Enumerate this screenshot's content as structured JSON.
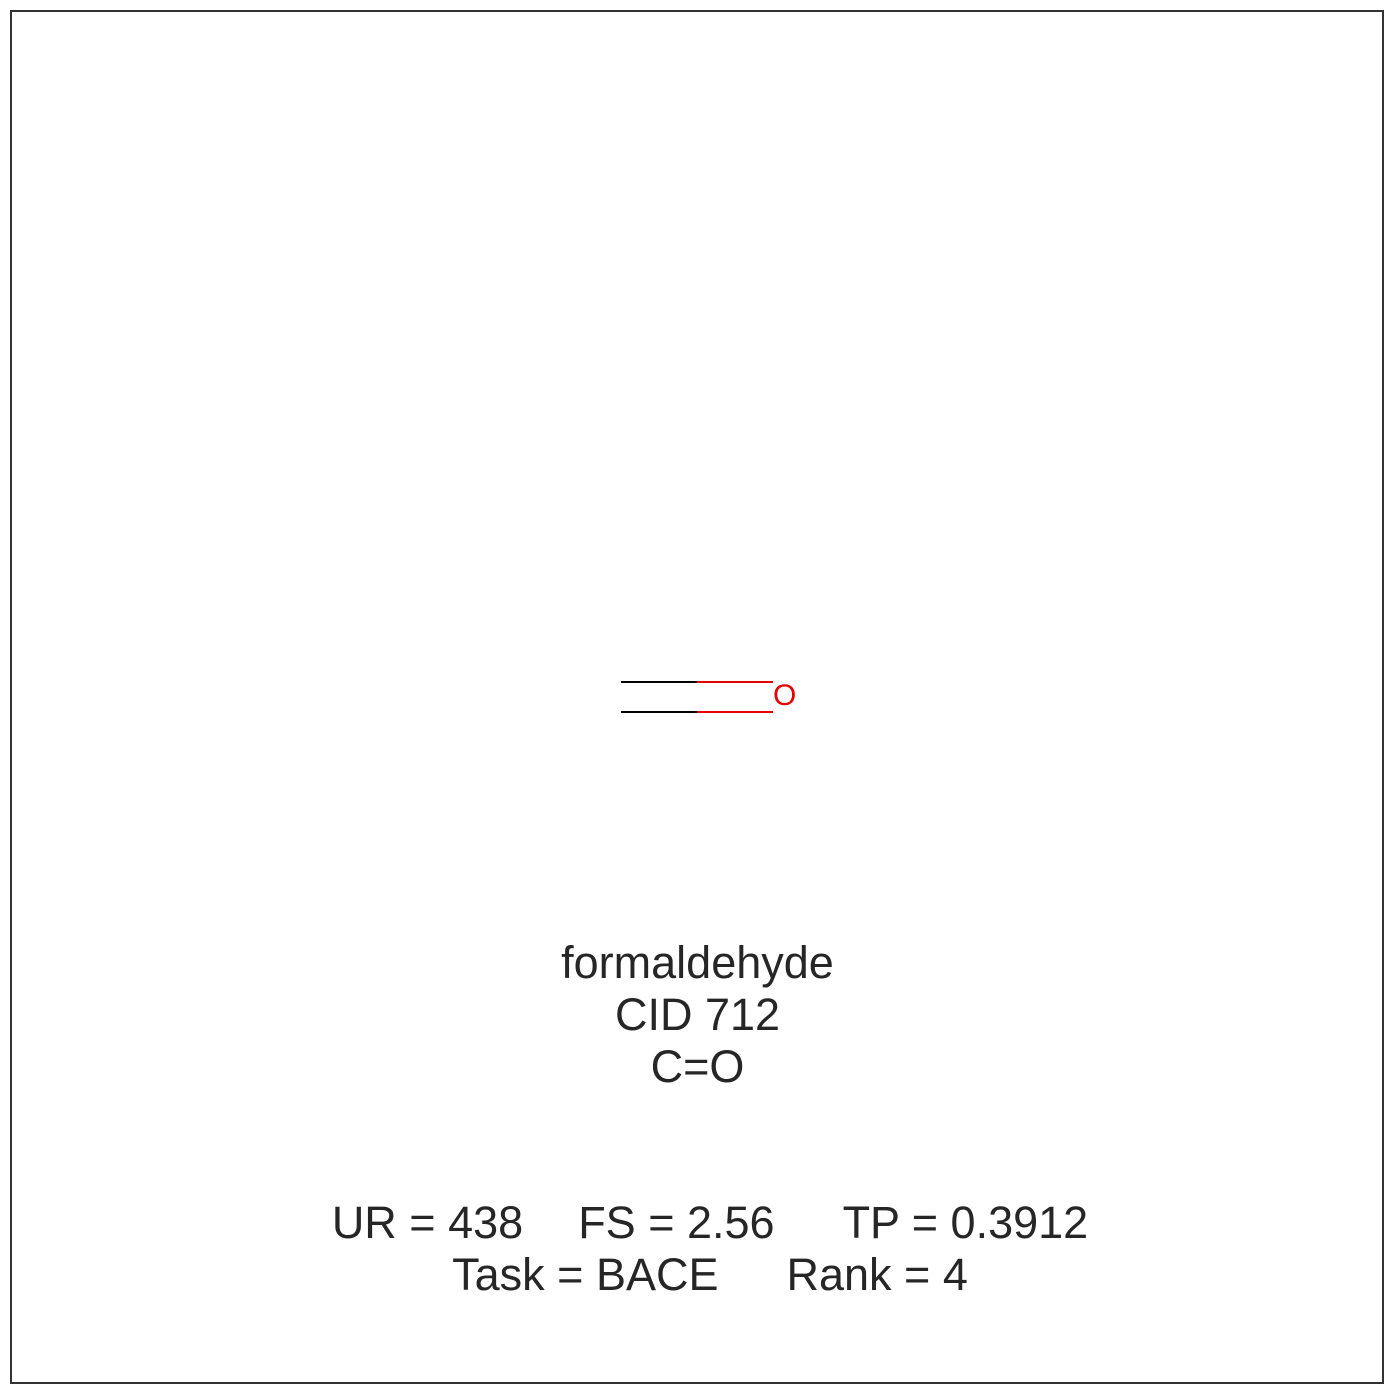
{
  "molecule": {
    "name": "formaldehyde",
    "cid": "CID 712",
    "smiles": "C=O",
    "atom_label": "O",
    "colors": {
      "carbon_bond": "#000000",
      "oxygen": "#e60000",
      "text": "#262626",
      "frame": "#333333"
    }
  },
  "stats": {
    "ur": "UR = 438",
    "fs": "FS = 2.56",
    "tp": "TP = 0.3912",
    "task": "Task = BACE",
    "rank": "Rank = 4"
  }
}
